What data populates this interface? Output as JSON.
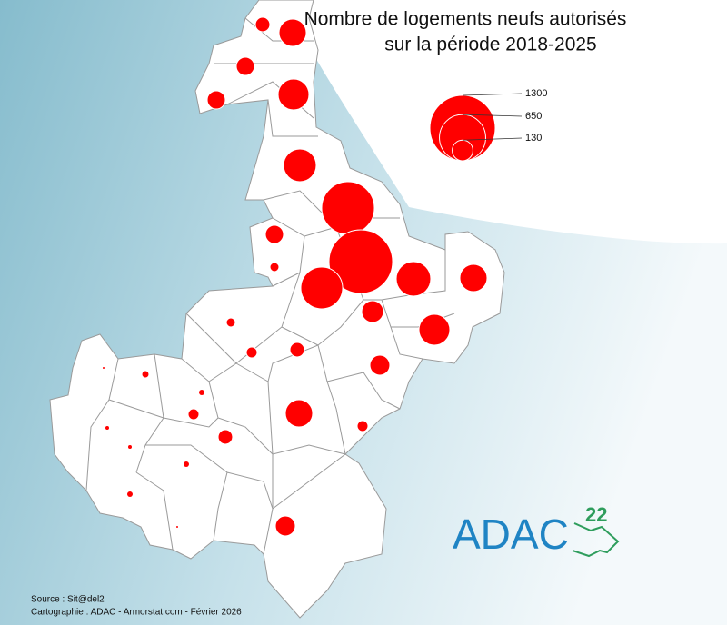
{
  "title": [
    "Nombre de logements neufs autorisés",
    "sur la période 2018-2025"
  ],
  "legend": {
    "values": [
      1300,
      650,
      130
    ]
  },
  "communes": {
    "values": [
      64,
      226,
      100,
      100,
      290,
      325,
      844,
      1229,
      531,
      362,
      226,
      144,
      290,
      100,
      25,
      25,
      36,
      64,
      121,
      16,
      9,
      36,
      226,
      36,
      64,
      4,
      4,
      9,
      9,
      121,
      1,
      1
    ]
  },
  "source": "Source : Sit@del2",
  "credits": "Cartographie : ADAC - Armorstat.com - Février 2026",
  "logo": {
    "text": "ADAC",
    "number": "22"
  }
}
